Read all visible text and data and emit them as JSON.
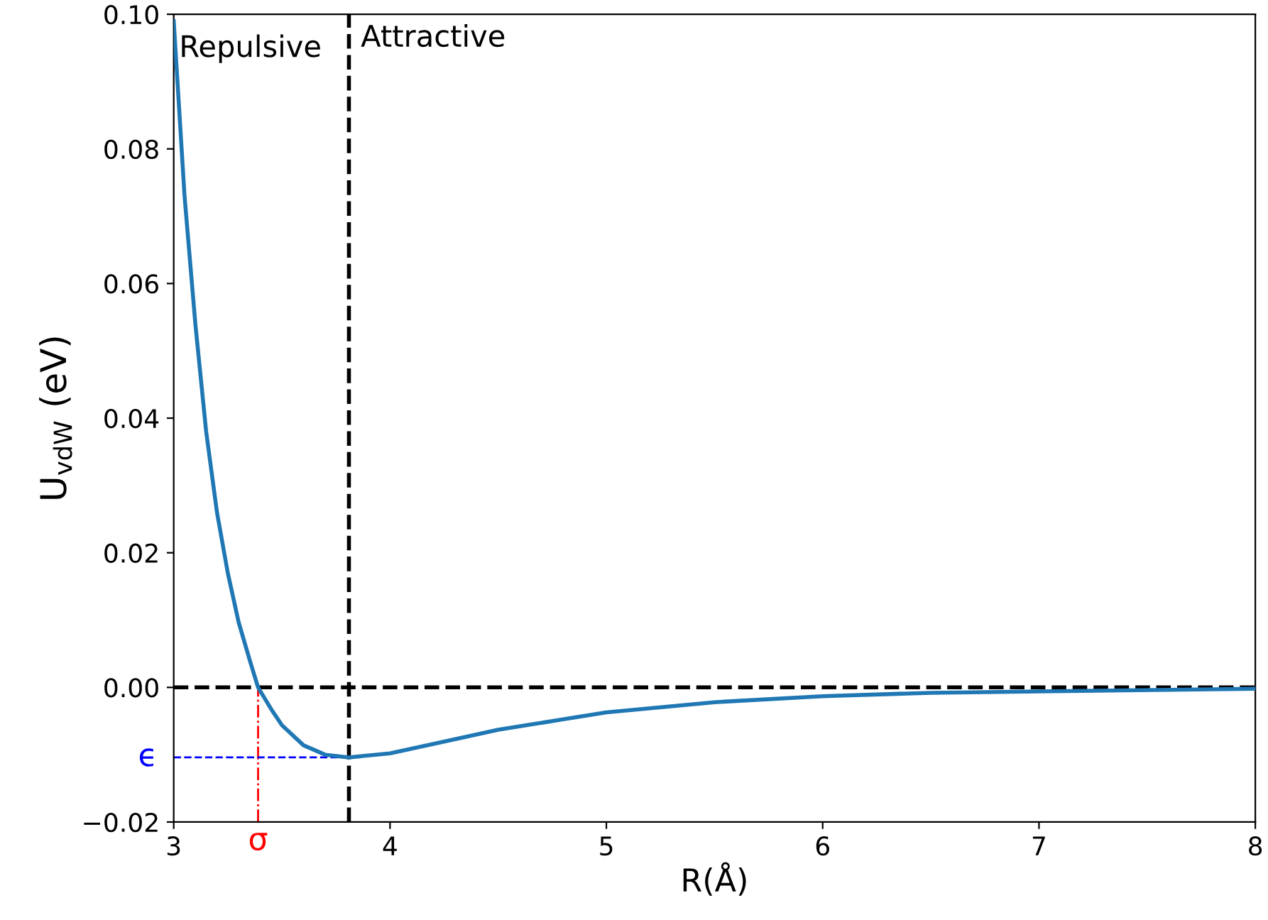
{
  "chart_data": {
    "type": "line",
    "xlabel": "R(Å)",
    "ylabel": "U$_{vdW}$ (eV)",
    "x": [
      3.0,
      3.05,
      3.1,
      3.15,
      3.2,
      3.25,
      3.3,
      3.35,
      3.39,
      3.45,
      3.5,
      3.6,
      3.7,
      3.81,
      4.0,
      4.2,
      4.5,
      5.0,
      5.5,
      6.0,
      6.5,
      7.0,
      8.0
    ],
    "series": [
      {
        "color": "#1f77b4",
        "values": [
          0.099,
          0.073,
          0.054,
          0.038,
          0.026,
          0.017,
          0.0097,
          0.0042,
          0.0,
          -0.0032,
          -0.0056,
          -0.0086,
          -0.01,
          -0.0104,
          -0.0098,
          -0.0084,
          -0.0063,
          -0.0037,
          -0.0022,
          -0.0013,
          -0.0008,
          -0.0006,
          -0.0002
        ]
      }
    ],
    "xlim": [
      3,
      8
    ],
    "xticks": [
      3,
      4,
      5,
      6,
      7,
      8
    ],
    "ylim": [
      -0.02,
      0.1
    ],
    "yticks": [
      {
        "value": -0.02,
        "label": "−0.02"
      },
      {
        "value": 0.0,
        "label": "0.00"
      },
      {
        "value": 0.02,
        "label": "0.02"
      },
      {
        "value": 0.04,
        "label": "0.04"
      },
      {
        "value": 0.06,
        "label": "0.06"
      },
      {
        "value": 0.08,
        "label": "0.08"
      },
      {
        "value": 0.1,
        "label": "0.10"
      }
    ],
    "ref_lines": [
      {
        "axis": "x",
        "value": 3.81,
        "color": "#000000",
        "line_style": "dashed"
      },
      {
        "axis": "y",
        "value": 0.0,
        "color": "#000000",
        "line_style": "dashed"
      },
      {
        "axis": "x",
        "value": 3.39,
        "label": "σ",
        "color": "#ff0000",
        "line_style": "dashdot"
      },
      {
        "axis": "y",
        "value": -0.0104,
        "label": "ϵ",
        "color": "#0000ff",
        "line_style": "dashed"
      }
    ],
    "annotations": [
      "Repulsive",
      "Attractive"
    ],
    "grid": false,
    "legend": false
  }
}
